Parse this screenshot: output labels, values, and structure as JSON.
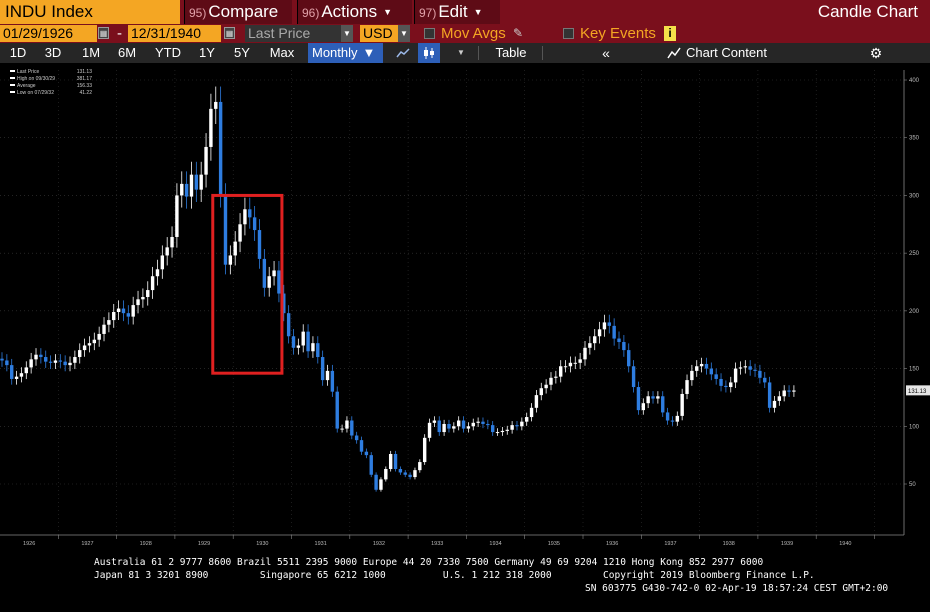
{
  "toolbar": {
    "ticker": "INDU Index",
    "compare": {
      "num": "95)",
      "label": "Compare"
    },
    "actions": {
      "num": "96)",
      "label": "Actions"
    },
    "edit": {
      "num": "97)",
      "label": "Edit"
    },
    "chart_name": "Candle Chart"
  },
  "range_bar": {
    "start_date": "01/29/1926",
    "end_date": "12/31/1940",
    "dash": "-",
    "field": "Last Price",
    "currency": "USD",
    "mov_avgs": "Mov Avgs",
    "key_events": "Key Events",
    "info_icon": "i"
  },
  "period_bar": {
    "periods": [
      "1D",
      "3D",
      "1M",
      "6M",
      "YTD",
      "1Y",
      "5Y",
      "Max"
    ],
    "frequency": "Monthly",
    "table": "Table",
    "chart_content": "Chart Content"
  },
  "colors": {
    "up": "#ffffff",
    "down": "#2e7de0",
    "highlight_box": "#e02020",
    "toolbar_bg": "#7a0f1c",
    "accent": "#f4a623"
  },
  "chart_data": {
    "type": "candlestick",
    "series": [
      {
        "name": "Last Price"
      }
    ],
    "legend": {
      "placement": "top-left",
      "entries": [
        {
          "label": "Last Price",
          "value": "131.13"
        },
        {
          "label": "High on 09/30/29",
          "value": "381.17"
        },
        {
          "label": "Average",
          "value": "156.33"
        },
        {
          "label": "Low on 07/29/32",
          "value": "41.22"
        }
      ]
    },
    "x_ticks": [
      "1926",
      "1927",
      "1928",
      "1929",
      "1930",
      "1931",
      "1932",
      "1933",
      "1934",
      "1935",
      "1936",
      "1937",
      "1938",
      "1939",
      "1940"
    ],
    "y_ticks": [
      "50",
      "100",
      "150",
      "200",
      "250",
      "300",
      "350",
      "400"
    ],
    "ylim": [
      0,
      410
    ],
    "last_price_label": "131.13",
    "highlight_box": {
      "x_range": [
        "1929-09",
        "1930-10"
      ],
      "y_range": [
        146,
        300
      ]
    },
    "x_start": "1926-01",
    "monthly_close": [
      157,
      153,
      141,
      143,
      146,
      151,
      158,
      162,
      160,
      156,
      155,
      157,
      156,
      153,
      155,
      160,
      166,
      170,
      172,
      175,
      180,
      188,
      192,
      199,
      202,
      198,
      195,
      205,
      210,
      212,
      218,
      230,
      236,
      248,
      255,
      264,
      300,
      310,
      299,
      318,
      305,
      318,
      342,
      375,
      381,
      300,
      240,
      248,
      260,
      275,
      288,
      281,
      270,
      245,
      220,
      230,
      235,
      215,
      198,
      178,
      168,
      170,
      182,
      165,
      172,
      160,
      140,
      148,
      130,
      98,
      98,
      105,
      92,
      88,
      78,
      75,
      58,
      45,
      54,
      63,
      76,
      63,
      60,
      58,
      56,
      62,
      69,
      90,
      103,
      105,
      95,
      102,
      98,
      100,
      105,
      98,
      100,
      103,
      104,
      102,
      101,
      95,
      95,
      96,
      97,
      101,
      100,
      104,
      108,
      116,
      127,
      133,
      136,
      142,
      143,
      152,
      152,
      155,
      155,
      158,
      168,
      172,
      178,
      184,
      190,
      187,
      176,
      173,
      166,
      152,
      134,
      114,
      120,
      126,
      124,
      126,
      112,
      105,
      104,
      109,
      128,
      140,
      148,
      152,
      154,
      150,
      145,
      141,
      135,
      134,
      138,
      150,
      151,
      152,
      149,
      148,
      142,
      138,
      116,
      122,
      126,
      131,
      130,
      131
    ]
  }
}
